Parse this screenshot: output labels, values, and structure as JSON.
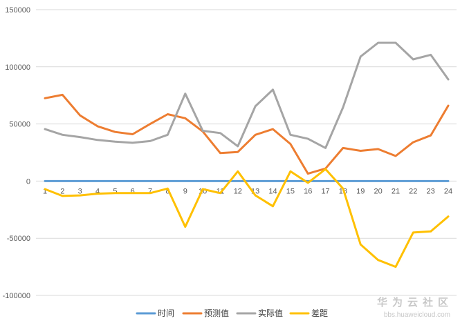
{
  "chart_data": {
    "type": "line",
    "x": [
      "1",
      "2",
      "3",
      "4",
      "5",
      "6",
      "7",
      "8",
      "9",
      "10",
      "11",
      "12",
      "13",
      "14",
      "15",
      "16",
      "17",
      "18",
      "19",
      "20",
      "21",
      "22",
      "23",
      "24"
    ],
    "ylim": [
      -100000,
      150000
    ],
    "yticks": [
      150000,
      100000,
      50000,
      0,
      -50000,
      -100000
    ],
    "ytick_labels": [
      "150000",
      "100000",
      "50000",
      "0",
      "-50000",
      "-100000"
    ],
    "grid": true,
    "legend_position": "bottom",
    "series": [
      {
        "name": "时间",
        "color": "#5B9BD5",
        "values": [
          0,
          0,
          0,
          0,
          0,
          0,
          0,
          0,
          0,
          0,
          0,
          0,
          0,
          0,
          0,
          0,
          0,
          0,
          0,
          0,
          0,
          0,
          0,
          0
        ]
      },
      {
        "name": "预测值",
        "color": "#ED7D31",
        "values": [
          72500,
          75500,
          57500,
          48000,
          43000,
          41000,
          50000,
          58500,
          55000,
          43500,
          24500,
          25500,
          40500,
          45500,
          32500,
          6500,
          11000,
          29000,
          26500,
          28000,
          22000,
          34000,
          40000,
          66000
        ]
      },
      {
        "name": "实际值",
        "color": "#A5A5A5",
        "values": [
          45500,
          40500,
          38500,
          36000,
          34500,
          33500,
          35000,
          40500,
          76500,
          44000,
          42000,
          30500,
          65500,
          80000,
          40500,
          37000,
          29000,
          64500,
          109000,
          121000,
          121000,
          106500,
          110500,
          89000
        ]
      },
      {
        "name": "差距",
        "color": "#FFC000",
        "values": [
          -7000,
          -13000,
          -12500,
          -11000,
          -10500,
          -10500,
          -10500,
          -6500,
          -40000,
          -7000,
          -10500,
          8500,
          -12500,
          -22000,
          8500,
          -1500,
          10500,
          -6500,
          -55500,
          -69000,
          -75000,
          -45000,
          -44000,
          -31000
        ]
      }
    ]
  },
  "watermark": {
    "brand": "华为云社区",
    "url": "bbs.huaweicloud.com"
  }
}
